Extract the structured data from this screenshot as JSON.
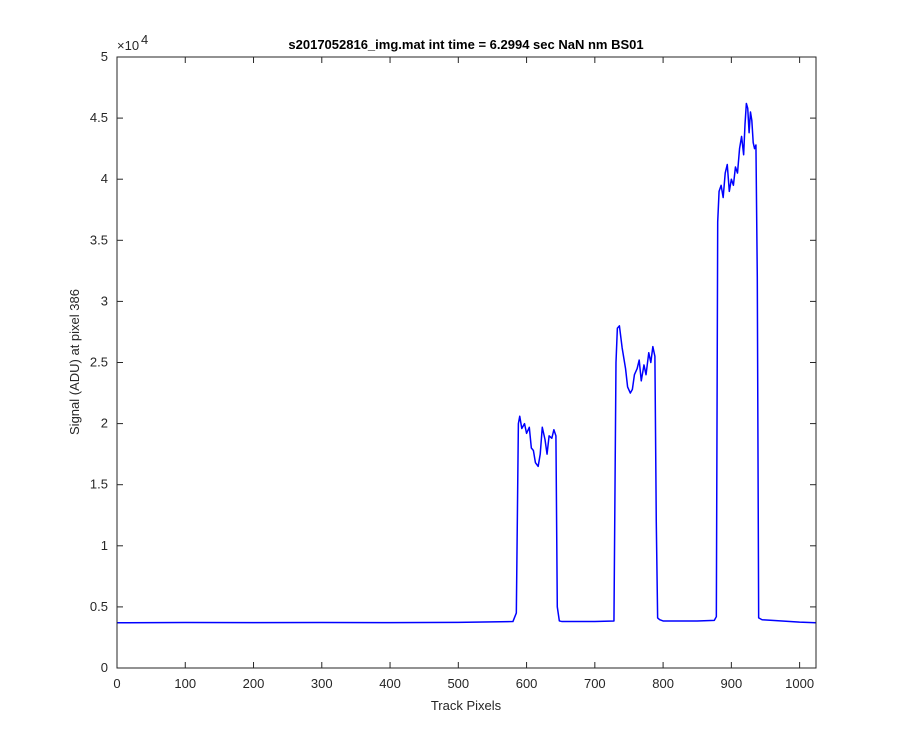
{
  "chart_data": {
    "type": "line",
    "title": "s2017052816_img.mat int time = 6.2994 sec  NaN nm BS01",
    "xlabel": "Track Pixels",
    "ylabel": "Signal (ADU) at pixel 386",
    "exponent_base": "×10",
    "exponent_power": "4",
    "xlim": [
      0,
      1024
    ],
    "ylim": [
      0,
      5
    ],
    "xticks": [
      "0",
      "100",
      "200",
      "300",
      "400",
      "500",
      "600",
      "700",
      "800",
      "900",
      "1000"
    ],
    "yticks": [
      "0",
      "0.5",
      "1",
      "1.5",
      "2",
      "2.5",
      "3",
      "3.5",
      "4",
      "4.5",
      "5"
    ],
    "grid": false,
    "series": [
      {
        "color": "#0000ff",
        "x": [
          0,
          100,
          200,
          300,
          400,
          500,
          580,
          585,
          588,
          590,
          593,
          597,
          600,
          604,
          607,
          610,
          613,
          617,
          620,
          623,
          627,
          630,
          633,
          637,
          640,
          643,
          645,
          648,
          652,
          660,
          700,
          728,
          731,
          733,
          736,
          740,
          745,
          748,
          752,
          755,
          758,
          762,
          765,
          768,
          772,
          775,
          779,
          782,
          785,
          788,
          790,
          792,
          795,
          800,
          850,
          875,
          878,
          880,
          882,
          885,
          888,
          891,
          894,
          897,
          900,
          903,
          906,
          909,
          912,
          915,
          918,
          920,
          922,
          924,
          926,
          928,
          930,
          932,
          934,
          936,
          938,
          940,
          945,
          960,
          1000,
          1024
        ],
        "values": [
          0.37,
          0.372,
          0.371,
          0.372,
          0.371,
          0.373,
          0.38,
          0.45,
          2.0,
          2.06,
          1.96,
          2.0,
          1.92,
          1.97,
          1.8,
          1.78,
          1.68,
          1.65,
          1.75,
          1.97,
          1.87,
          1.75,
          1.9,
          1.88,
          1.95,
          1.9,
          0.5,
          0.385,
          0.38,
          0.38,
          0.38,
          0.385,
          2.5,
          2.78,
          2.8,
          2.62,
          2.45,
          2.3,
          2.25,
          2.28,
          2.4,
          2.45,
          2.52,
          2.35,
          2.48,
          2.4,
          2.58,
          2.5,
          2.63,
          2.55,
          1.2,
          0.41,
          0.395,
          0.385,
          0.385,
          0.39,
          0.42,
          3.65,
          3.9,
          3.95,
          3.85,
          4.05,
          4.12,
          3.9,
          4.0,
          3.95,
          4.1,
          4.05,
          4.25,
          4.35,
          4.2,
          4.45,
          4.62,
          4.58,
          4.38,
          4.55,
          4.48,
          4.3,
          4.25,
          4.28,
          3.2,
          0.41,
          0.395,
          0.39,
          0.375,
          0.37
        ]
      }
    ]
  }
}
